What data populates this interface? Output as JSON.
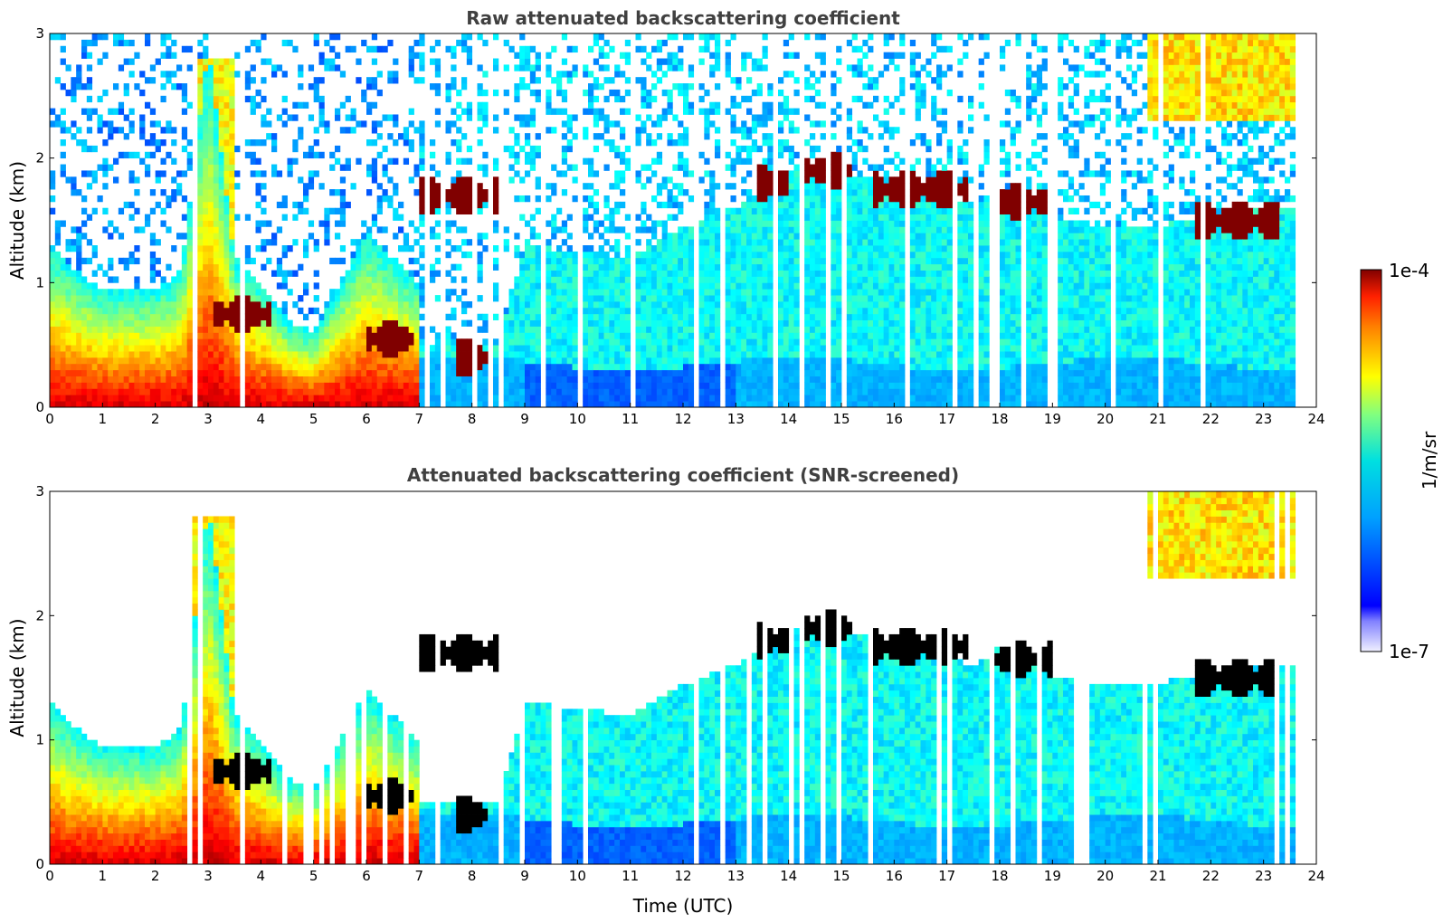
{
  "chart_data": [
    {
      "type": "heatmap",
      "title": "Raw attenuated backscattering coefficient",
      "xlabel": "",
      "ylabel": "Altitude (km)",
      "xlim": [
        0,
        24
      ],
      "ylim": [
        0,
        3
      ],
      "xticks": [
        "0",
        "1",
        "2",
        "3",
        "4",
        "5",
        "6",
        "7",
        "8",
        "9",
        "10",
        "11",
        "12",
        "13",
        "14",
        "15",
        "16",
        "17",
        "18",
        "19",
        "20",
        "21",
        "22",
        "23",
        "24"
      ],
      "yticks": [
        "0",
        "1",
        "2",
        "3"
      ],
      "data_end_time": 23.55,
      "screened": false,
      "features": {
        "boundary_layer_top_km": [
          [
            0,
            1.3
          ],
          [
            0.5,
            1.1
          ],
          [
            1,
            0.95
          ],
          [
            2,
            0.95
          ],
          [
            2.5,
            1.1
          ],
          [
            3,
            2.9
          ],
          [
            3.5,
            1.2
          ],
          [
            4,
            1.0
          ],
          [
            4.5,
            0.7
          ],
          [
            5,
            0.6
          ],
          [
            5.5,
            1.0
          ],
          [
            6,
            1.4
          ],
          [
            7,
            1.0
          ],
          [
            7.5,
            0.5
          ],
          [
            8,
            0.4
          ],
          [
            9,
            0.35
          ],
          [
            11,
            0.4
          ],
          [
            12,
            0.45
          ],
          [
            13,
            0.35
          ],
          [
            24,
            0.35
          ]
        ],
        "cloud_layers": [
          {
            "t_start": 3.1,
            "t_end": 4.2,
            "alt_km": 0.75
          },
          {
            "t_start": 6.0,
            "t_end": 6.9,
            "alt_km": 0.55
          },
          {
            "t_start": 7.7,
            "t_end": 8.3,
            "alt_km": 0.4
          },
          {
            "t_start": 7.0,
            "t_end": 8.6,
            "alt_km": 1.7
          },
          {
            "t_start": 13.4,
            "t_end": 14.0,
            "alt_km": 1.8
          },
          {
            "t_start": 14.2,
            "t_end": 15.2,
            "alt_km": 1.9
          },
          {
            "t_start": 15.6,
            "t_end": 17.4,
            "alt_km": 1.75
          },
          {
            "t_start": 17.9,
            "t_end": 19.0,
            "alt_km": 1.65
          },
          {
            "t_start": 21.7,
            "t_end": 23.3,
            "alt_km": 1.5
          }
        ]
      }
    },
    {
      "type": "heatmap",
      "title": "Attenuated backscattering coefficient (SNR-screened)",
      "xlabel": "Time (UTC)",
      "ylabel": "Altitude (km)",
      "xlim": [
        0,
        24
      ],
      "ylim": [
        0,
        3
      ],
      "xticks": [
        "0",
        "1",
        "2",
        "3",
        "4",
        "5",
        "6",
        "7",
        "8",
        "9",
        "10",
        "11",
        "12",
        "13",
        "14",
        "15",
        "16",
        "17",
        "18",
        "19",
        "20",
        "21",
        "22",
        "23",
        "24"
      ],
      "yticks": [
        "0",
        "1",
        "2",
        "3"
      ],
      "data_end_time": 23.55,
      "screened": true
    }
  ],
  "colorbar": {
    "label": "1/m/sr",
    "max_label": "1e-4",
    "min_label": "1e-7",
    "scale": "log",
    "colormap": "jet",
    "vmin": 1e-07,
    "vmax": 0.0001
  },
  "colors": {
    "title": "#404040",
    "saturated": "#000000",
    "background": "#ffffff"
  }
}
